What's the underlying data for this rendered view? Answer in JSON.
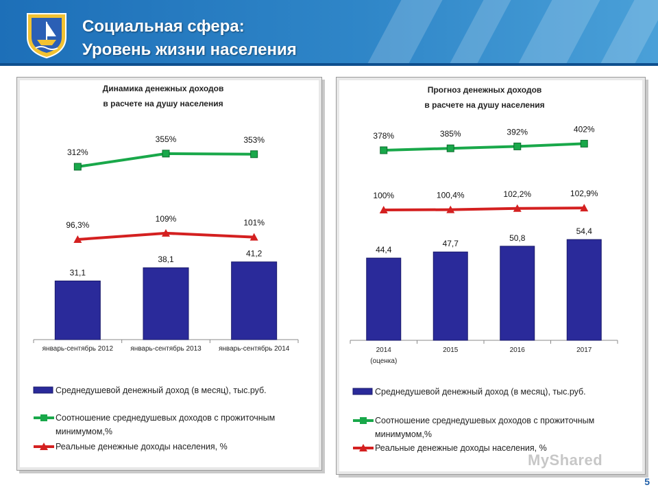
{
  "header": {
    "title_line1": "Социальная сфера:",
    "title_line2": "Уровень жизни населения",
    "accent_color": "#1d6fb8"
  },
  "page_number": "5",
  "watermark": "MyShared",
  "charts": [
    {
      "title_line1": "Динамика денежных доходов",
      "title_line2": "в расчете на душу населения",
      "categories": [
        [
          "январь-сентябрь 2012"
        ],
        [
          "январь-сентябрь 2013"
        ],
        [
          "январь-сентябрь 2014"
        ]
      ],
      "bars": {
        "values": [
          31.1,
          38.1,
          41.2
        ],
        "labels": [
          "31,1",
          "38,1",
          "41,2"
        ],
        "color": "#2a2a9a"
      },
      "ratio_line": {
        "values": [
          312,
          355,
          353
        ],
        "labels": [
          "312%",
          "355%",
          "353%"
        ],
        "color": "#19a84a"
      },
      "real_income_line": {
        "values": [
          96.3,
          109,
          101
        ],
        "labels": [
          "96,3%",
          "109%",
          "101%"
        ],
        "color": "#d42020"
      },
      "legend": {
        "bars": "Среднедушевой денежный доход (в месяц), тыс.руб.",
        "ratio_line1": "Соотношение среднедушевых доходов с прожиточным",
        "ratio_line2": "минимумом,%",
        "real_income": "Реальные  денежные доходы населения, %"
      }
    },
    {
      "title_line1": "Прогноз денежных доходов",
      "title_line2": "в расчете на душу населения",
      "categories": [
        [
          "2014",
          "(оценка)"
        ],
        [
          "2015"
        ],
        [
          "2016"
        ],
        [
          "2017"
        ]
      ],
      "bars": {
        "values": [
          44.4,
          47.7,
          50.8,
          54.4
        ],
        "labels": [
          "44,4",
          "47,7",
          "50,8",
          "54,4"
        ],
        "color": "#2a2a9a"
      },
      "ratio_line": {
        "values": [
          378,
          385,
          392,
          402
        ],
        "labels": [
          "378%",
          "385%",
          "392%",
          "402%"
        ],
        "color": "#19a84a"
      },
      "real_income_line": {
        "values": [
          100,
          100.4,
          102.2,
          102.9
        ],
        "labels": [
          "100%",
          "100,4%",
          "102,2%",
          "102,9%"
        ],
        "color": "#d42020"
      },
      "legend": {
        "bars": "Среднедушевой денежный доход (в месяц), тыс.руб.",
        "ratio_line1": "Соотношение среднедушевых доходов с прожиточным",
        "ratio_line2": "минимумом,%",
        "real_income": "Реальные  денежные доходы населения, %"
      }
    }
  ],
  "chart_data": [
    {
      "type": "bar",
      "title": "Динамика денежных доходов в расчете на душу населения",
      "categories": [
        "январь-сентябрь 2012",
        "январь-сентябрь 2013",
        "январь-сентябрь 2014"
      ],
      "series": [
        {
          "name": "Среднедушевой денежный доход (в месяц), тыс.руб.",
          "type": "bar",
          "values": [
            31.1,
            38.1,
            41.2
          ]
        },
        {
          "name": "Соотношение среднедушевых доходов с прожиточным минимумом,%",
          "type": "line",
          "values": [
            312,
            355,
            353
          ]
        },
        {
          "name": "Реальные  денежные доходы населения, %",
          "type": "line",
          "values": [
            96.3,
            109,
            101
          ]
        }
      ],
      "grid": false,
      "legend": "bottom"
    },
    {
      "type": "bar",
      "title": "Прогноз денежных доходов в расчете на душу населения",
      "categories": [
        "2014 (оценка)",
        "2015",
        "2016",
        "2017"
      ],
      "series": [
        {
          "name": "Среднедушевой денежный доход (в месяц), тыс.руб.",
          "type": "bar",
          "values": [
            44.4,
            47.7,
            50.8,
            54.4
          ]
        },
        {
          "name": "Соотношение среднедушевых доходов с прожиточным минимумом,%",
          "type": "line",
          "values": [
            378,
            385,
            392,
            402
          ]
        },
        {
          "name": "Реальные  денежные доходы населения, %",
          "type": "line",
          "values": [
            100,
            100.4,
            102.2,
            102.9
          ]
        }
      ],
      "grid": false,
      "legend": "bottom"
    }
  ]
}
